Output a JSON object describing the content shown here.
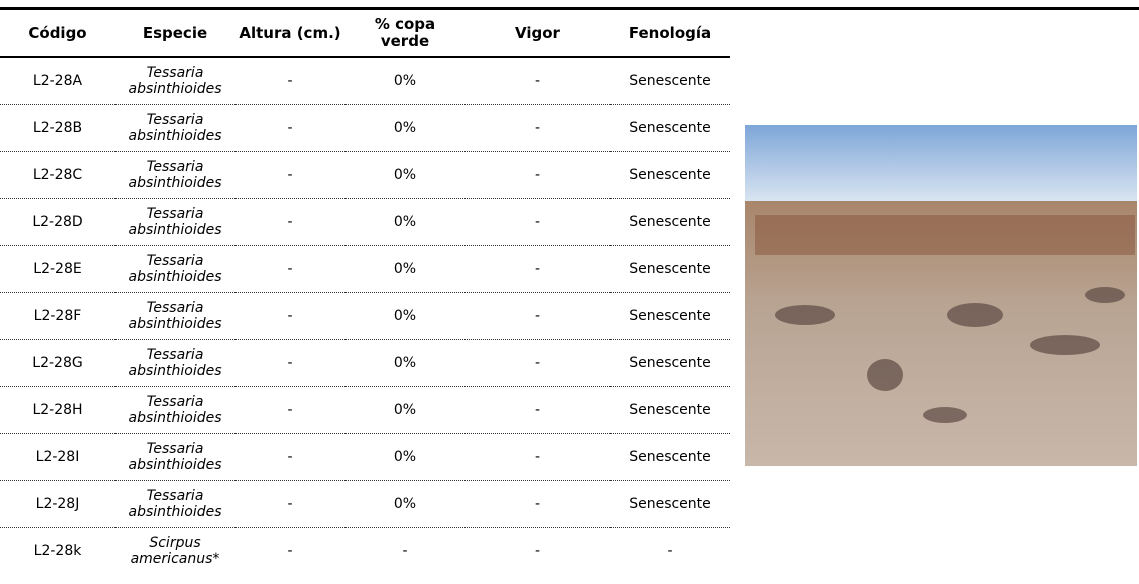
{
  "table": {
    "headers": [
      "Código",
      "Especie",
      "Altura (cm.)",
      "% copa verde",
      "Vigor",
      "Fenología"
    ],
    "rows": [
      [
        "L2-28A",
        "Tessaria absinthioides",
        "-",
        "0%",
        "-",
        "Senescente"
      ],
      [
        "L2-28B",
        "Tessaria absinthioides",
        "-",
        "0%",
        "-",
        "Senescente"
      ],
      [
        "L2-28C",
        "Tessaria absinthioides",
        "-",
        "0%",
        "-",
        "Senescente"
      ],
      [
        "L2-28D",
        "Tessaria absinthioides",
        "-",
        "0%",
        "-",
        "Senescente"
      ],
      [
        "L2-28E",
        "Tessaria absinthioides",
        "-",
        "0%",
        "-",
        "Senescente"
      ],
      [
        "L2-28F",
        "Tessaria absinthioides",
        "-",
        "0%",
        "-",
        "Senescente"
      ],
      [
        "L2-28G",
        "Tessaria absinthioides",
        "-",
        "0%",
        "-",
        "Senescente"
      ],
      [
        "L2-28H",
        "Tessaria absinthioides",
        "-",
        "0%",
        "-",
        "Senescente"
      ],
      [
        "L2-28I",
        "Tessaria absinthioides",
        "-",
        "0%",
        "-",
        "Senescente"
      ],
      [
        "L2-28J",
        "Tessaria absinthioides",
        "-",
        "0%",
        "-",
        "Senescente"
      ],
      [
        "L2-28k",
        "Scirpus americanus*",
        "-",
        "-",
        "-",
        "-"
      ]
    ]
  }
}
